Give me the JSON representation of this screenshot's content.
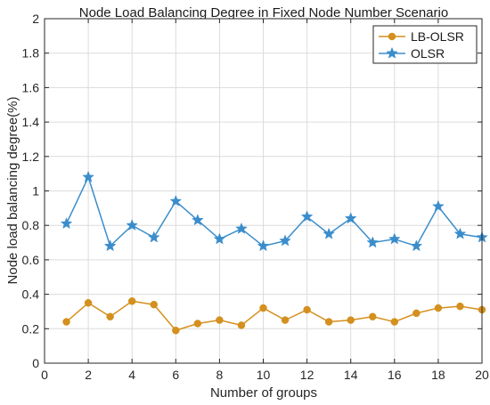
{
  "chart_data": {
    "type": "line",
    "title": "Node Load Balancing Degree in Fixed Node Number Scenario",
    "xlabel": "Number of groups",
    "ylabel": "Node load balancing degree(%)",
    "xlim": [
      0,
      20
    ],
    "ylim": [
      0,
      2
    ],
    "xticks": [
      0,
      2,
      4,
      6,
      8,
      10,
      12,
      14,
      16,
      18,
      20
    ],
    "yticks": [
      0,
      0.2,
      0.4,
      0.6,
      0.8,
      1,
      1.2,
      1.4,
      1.6,
      1.8,
      2
    ],
    "xtick_labels": [
      "0",
      "2",
      "4",
      "6",
      "8",
      "10",
      "12",
      "14",
      "16",
      "18",
      "20"
    ],
    "ytick_labels": [
      "0",
      "0.2",
      "0.4",
      "0.6",
      "0.8",
      "1",
      "1.2",
      "1.4",
      "1.6",
      "1.8",
      "2"
    ],
    "grid": true,
    "legend_position": "top-right",
    "x": [
      1,
      2,
      3,
      4,
      5,
      6,
      7,
      8,
      9,
      10,
      11,
      12,
      13,
      14,
      15,
      16,
      17,
      18,
      19,
      20
    ],
    "series": [
      {
        "name": "LB-OLSR",
        "color": "#D4901E",
        "marker": "circle",
        "values": [
          0.24,
          0.35,
          0.27,
          0.36,
          0.34,
          0.19,
          0.23,
          0.25,
          0.22,
          0.32,
          0.25,
          0.31,
          0.24,
          0.25,
          0.27,
          0.24,
          0.29,
          0.32,
          0.33,
          0.31
        ]
      },
      {
        "name": "OLSR",
        "color": "#3A8DCC",
        "marker": "star",
        "values": [
          0.81,
          1.08,
          0.68,
          0.8,
          0.73,
          0.94,
          0.83,
          0.72,
          0.78,
          0.68,
          0.71,
          0.85,
          0.75,
          0.84,
          0.7,
          0.72,
          0.68,
          0.91,
          0.75,
          0.73
        ]
      }
    ]
  }
}
